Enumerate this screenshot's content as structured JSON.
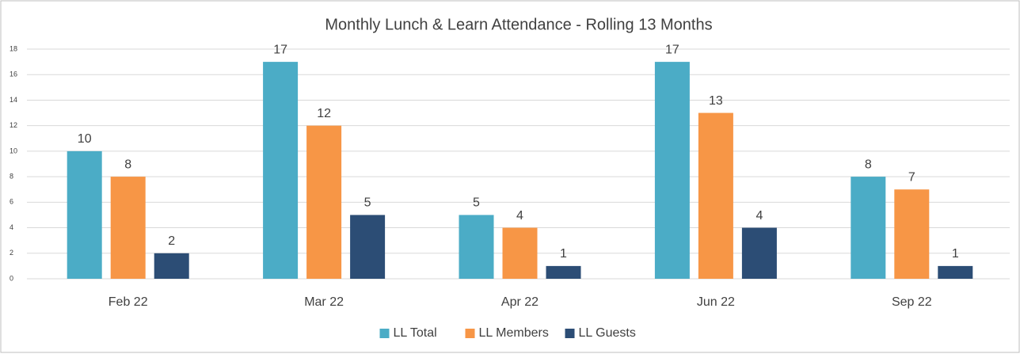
{
  "chart_data": {
    "type": "bar",
    "title": "Monthly Lunch & Learn Attendance - Rolling 13 Months",
    "categories": [
      "Feb 22",
      "Mar 22",
      "Apr 22",
      "Jun 22",
      "Sep 22"
    ],
    "series": [
      {
        "name": "LL Total",
        "color": "#4bacc6",
        "values": [
          10,
          17,
          5,
          17,
          8
        ]
      },
      {
        "name": "LL Members",
        "color": "#f79646",
        "values": [
          8,
          12,
          4,
          13,
          7
        ]
      },
      {
        "name": "LL Guests",
        "color": "#2c4d75",
        "values": [
          2,
          5,
          1,
          4,
          1
        ]
      }
    ],
    "ylim": [
      0,
      18
    ],
    "yticks": [
      0,
      2,
      4,
      6,
      8,
      10,
      12,
      14,
      16,
      18
    ],
    "grid": true,
    "legend": "bottom"
  }
}
